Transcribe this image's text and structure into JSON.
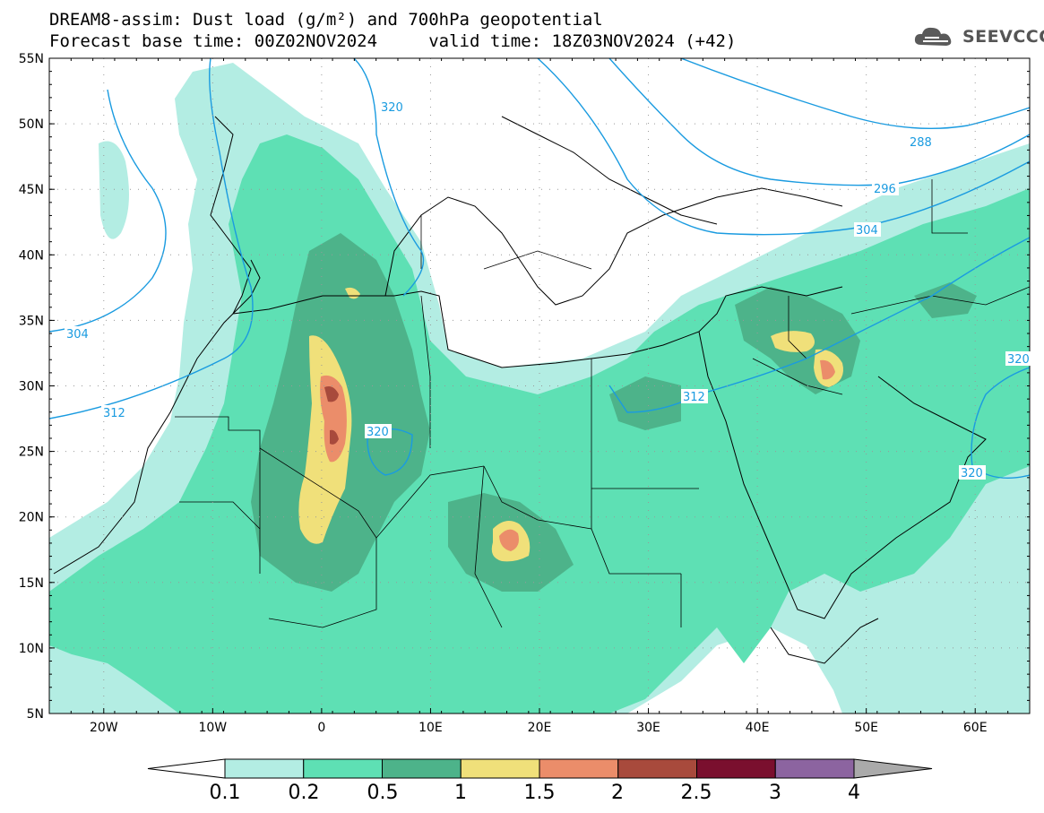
{
  "title": {
    "line1": "DREAM8-assim: Dust load (g/m²) and 700hPa geopotential",
    "line2": "Forecast base time: 00Z02NOV2024     valid time: 18Z03NOV2024 (+42)"
  },
  "logo": {
    "text": "SEEVCCC",
    "icon": "cloud-logo-icon"
  },
  "map": {
    "lon_range": [
      -25,
      65
    ],
    "lat_range": [
      5,
      55
    ],
    "lat_ticks": [
      "55N",
      "50N",
      "45N",
      "40N",
      "35N",
      "30N",
      "25N",
      "20N",
      "15N",
      "10N",
      "5N"
    ],
    "lon_ticks": [
      "20W",
      "10W",
      "0",
      "10E",
      "20E",
      "30E",
      "40E",
      "50E",
      "60E"
    ],
    "gridlines": "dotted"
  },
  "contour_labels": [
    "320",
    "288",
    "296",
    "304",
    "304",
    "312",
    "320",
    "312",
    "320",
    "320"
  ],
  "colorbar": {
    "labels": [
      "0.1",
      "0.2",
      "0.5",
      "1",
      "1.5",
      "2",
      "2.5",
      "3",
      "4"
    ],
    "colors": [
      "#b3ede3",
      "#5ee0b4",
      "#4db38a",
      "#f0e07a",
      "#eb8d6a",
      "#a84a3c",
      "#7a0f2e",
      "#8c64a0"
    ],
    "under_color": "#ffffff",
    "over_color": "#aaaaaa"
  }
}
